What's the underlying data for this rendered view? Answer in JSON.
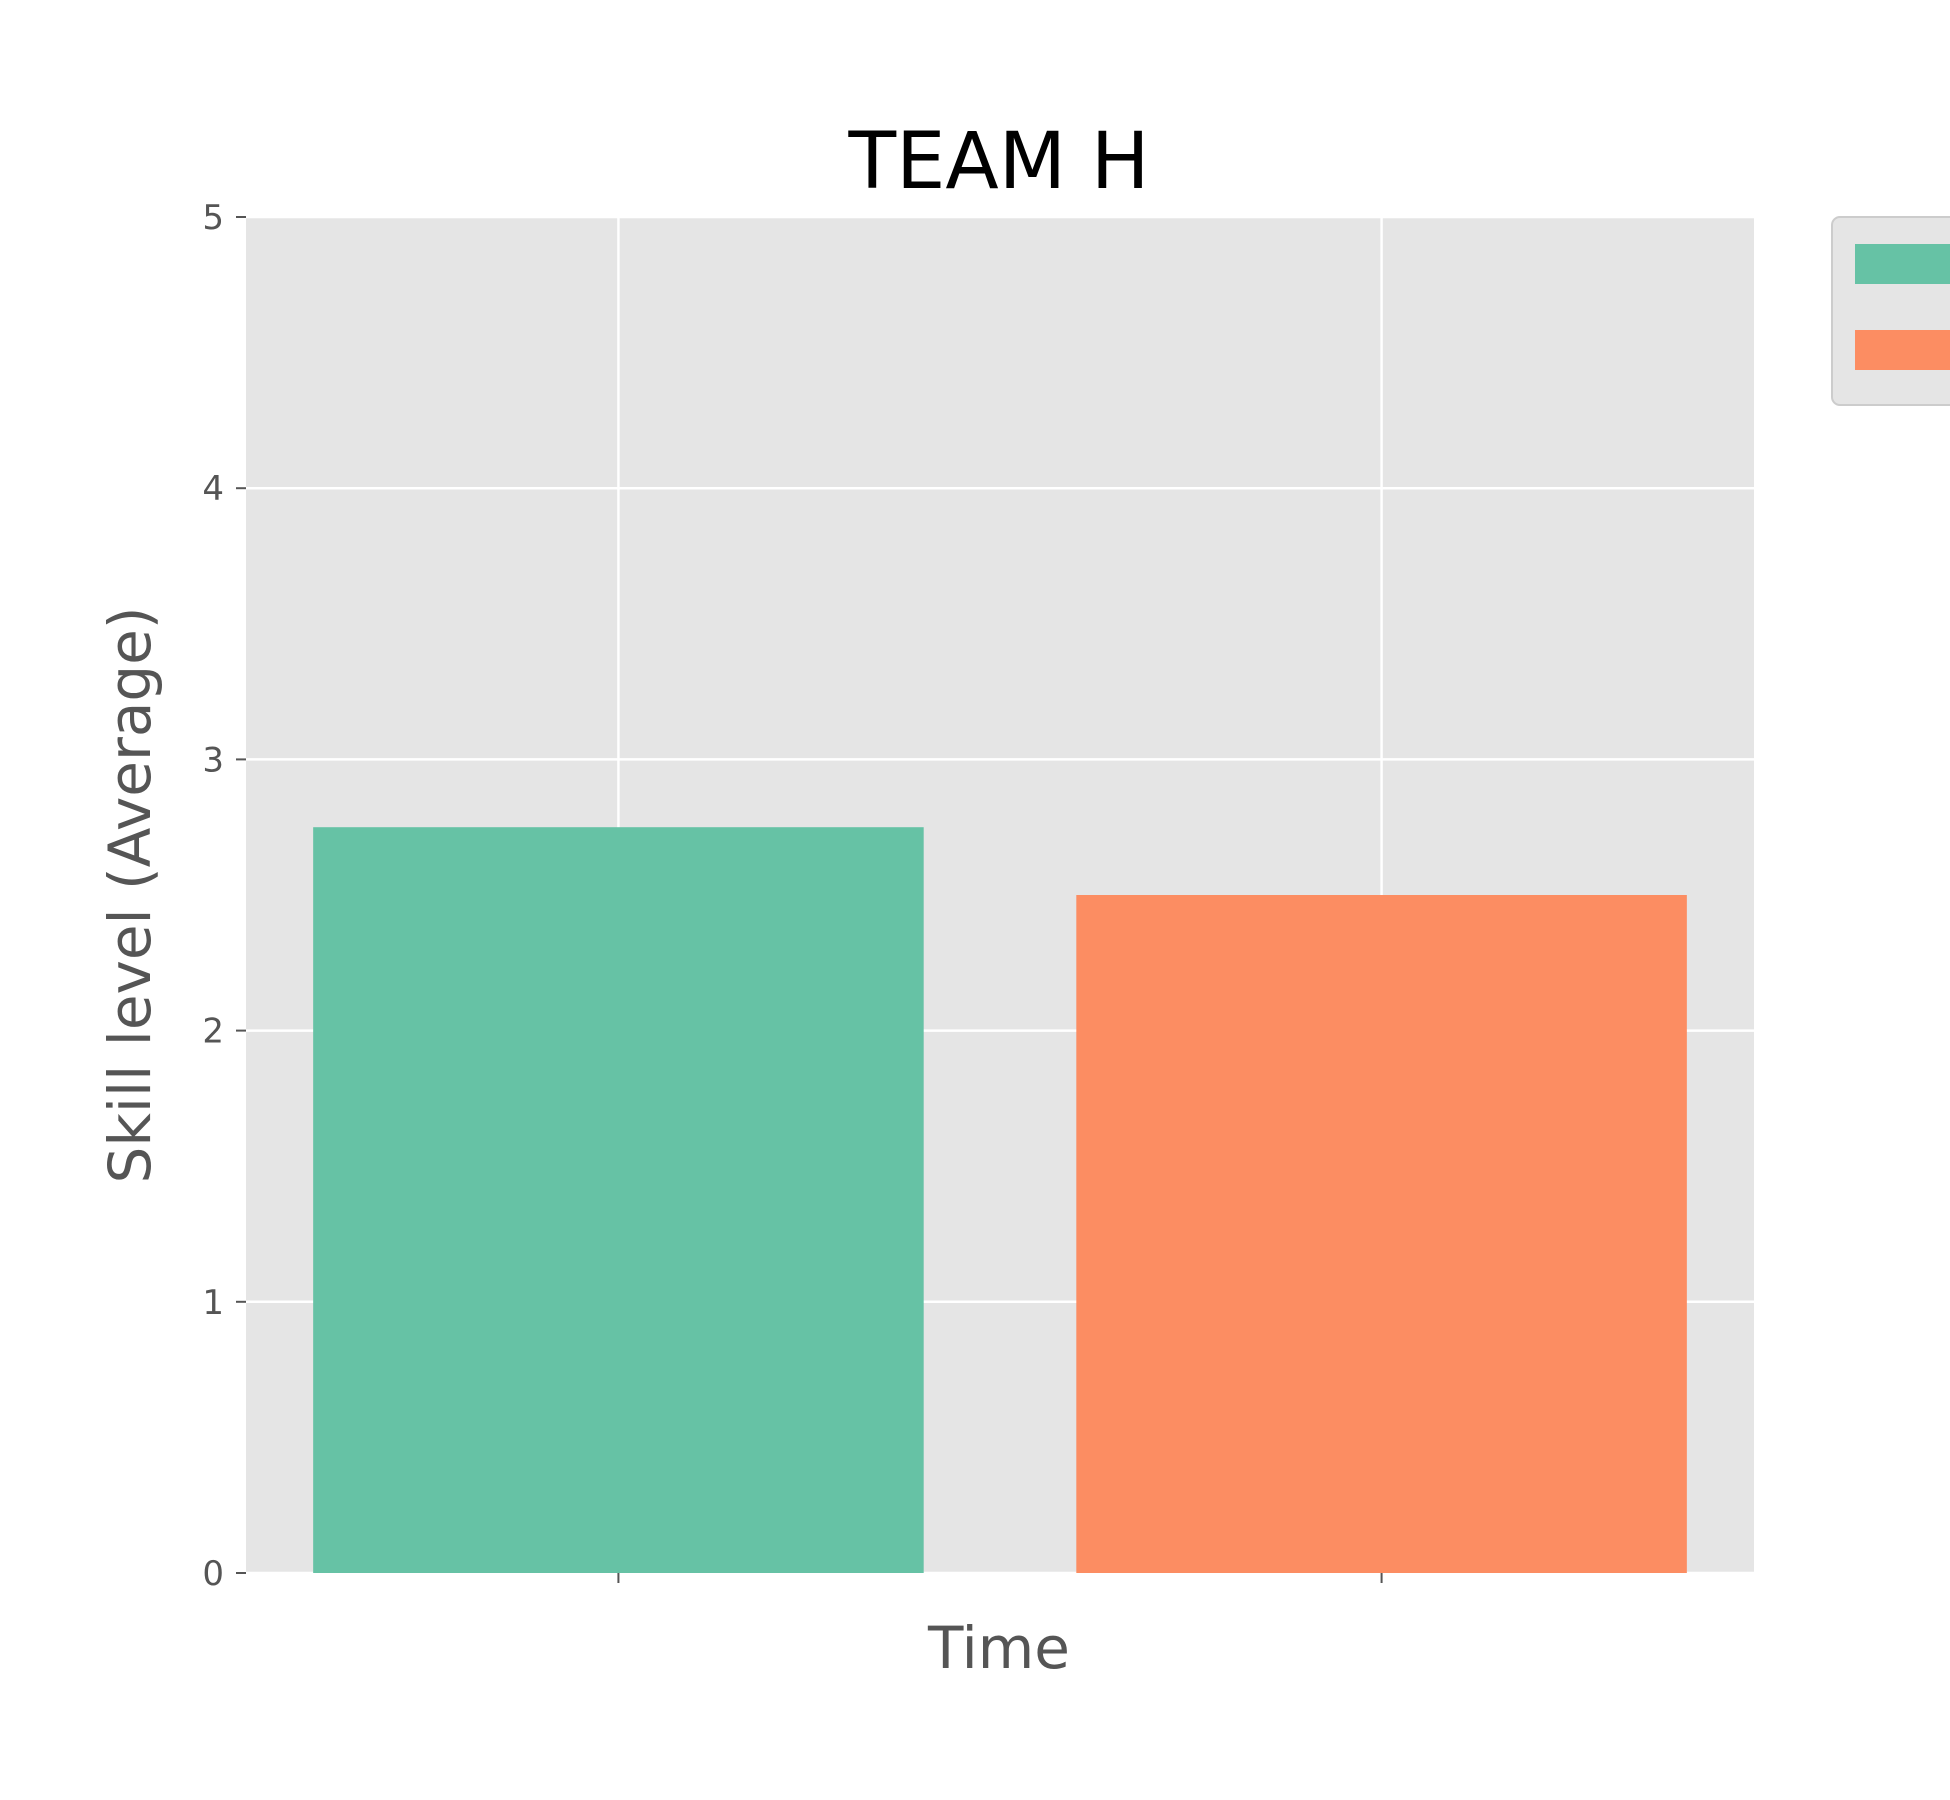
{
  "chart_data": {
    "type": "bar",
    "title": "TEAM H",
    "xlabel": "Time",
    "ylabel": "Skill level (Average)",
    "categories": [
      "",
      ""
    ],
    "values": [
      2.75,
      2.5
    ],
    "ylim": [
      0,
      5
    ],
    "yticks": [
      "0",
      "1",
      "2",
      "3",
      "4",
      "5"
    ],
    "bar_colors": [
      "#66c2a5",
      "#fc8d62"
    ],
    "grid": true,
    "legend": {
      "placement": "outside-right",
      "entries": [
        {
          "color": "#66c2a5"
        },
        {
          "color": "#fc8d62"
        }
      ]
    },
    "colors": {
      "plot_background": "#e5e5e5",
      "grid": "#ffffff",
      "text": "#555555",
      "title": "#000000"
    }
  }
}
